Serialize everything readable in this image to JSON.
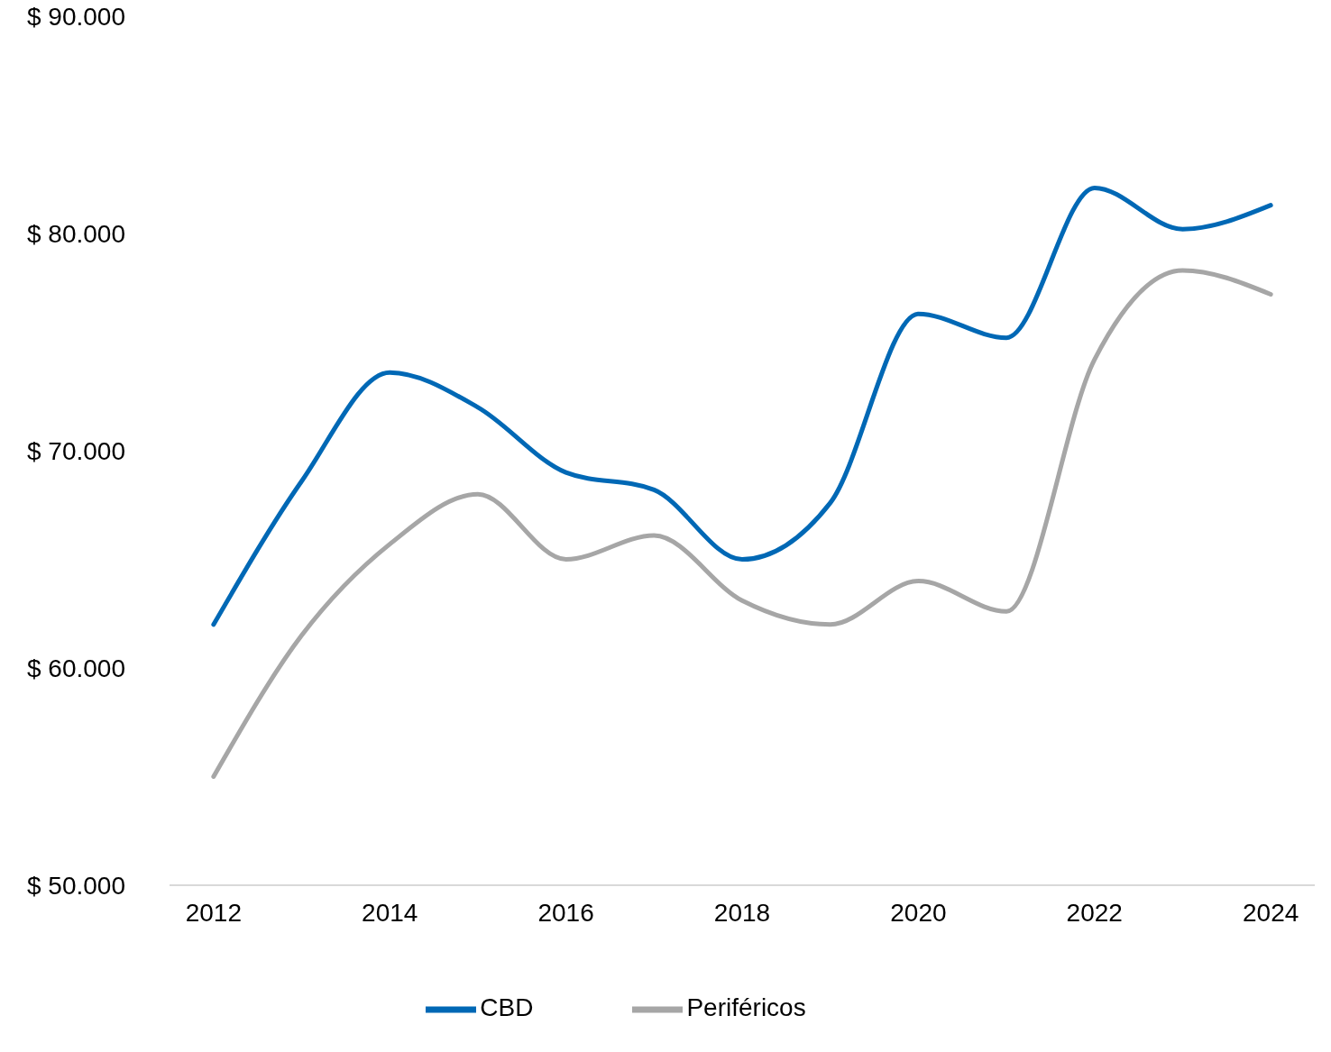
{
  "chart_data": {
    "type": "line",
    "x": [
      2012,
      2013,
      2014,
      2015,
      2016,
      2017,
      2018,
      2019,
      2020,
      2021,
      2022,
      2023,
      2024
    ],
    "series": [
      {
        "name": "CBD",
        "color": "#0068b5",
        "values": [
          62000,
          68600,
          73600,
          72000,
          69000,
          68200,
          65000,
          67600,
          76300,
          75200,
          82100,
          80200,
          81300
        ]
      },
      {
        "name": "Periféricos",
        "color": "#a6a6a6",
        "values": [
          55000,
          61500,
          65700,
          68000,
          65000,
          66100,
          63100,
          62000,
          64000,
          62600,
          74200,
          78300,
          77200
        ]
      }
    ],
    "xlim": [
      2011.5,
      2024.5
    ],
    "xticks": [
      2012,
      2014,
      2016,
      2018,
      2020,
      2022,
      2024
    ],
    "ylim": [
      50000,
      90000
    ],
    "yticks": [
      {
        "value": 50000,
        "label": "$ 50.000"
      },
      {
        "value": 60000,
        "label": "$ 60.000"
      },
      {
        "value": 70000,
        "label": "$ 70.000"
      },
      {
        "value": 80000,
        "label": "$ 80.000"
      },
      {
        "value": 90000,
        "label": "$ 90.000"
      }
    ],
    "grid": false,
    "legend": "bottom",
    "marker": "none",
    "line_style": "solid"
  }
}
